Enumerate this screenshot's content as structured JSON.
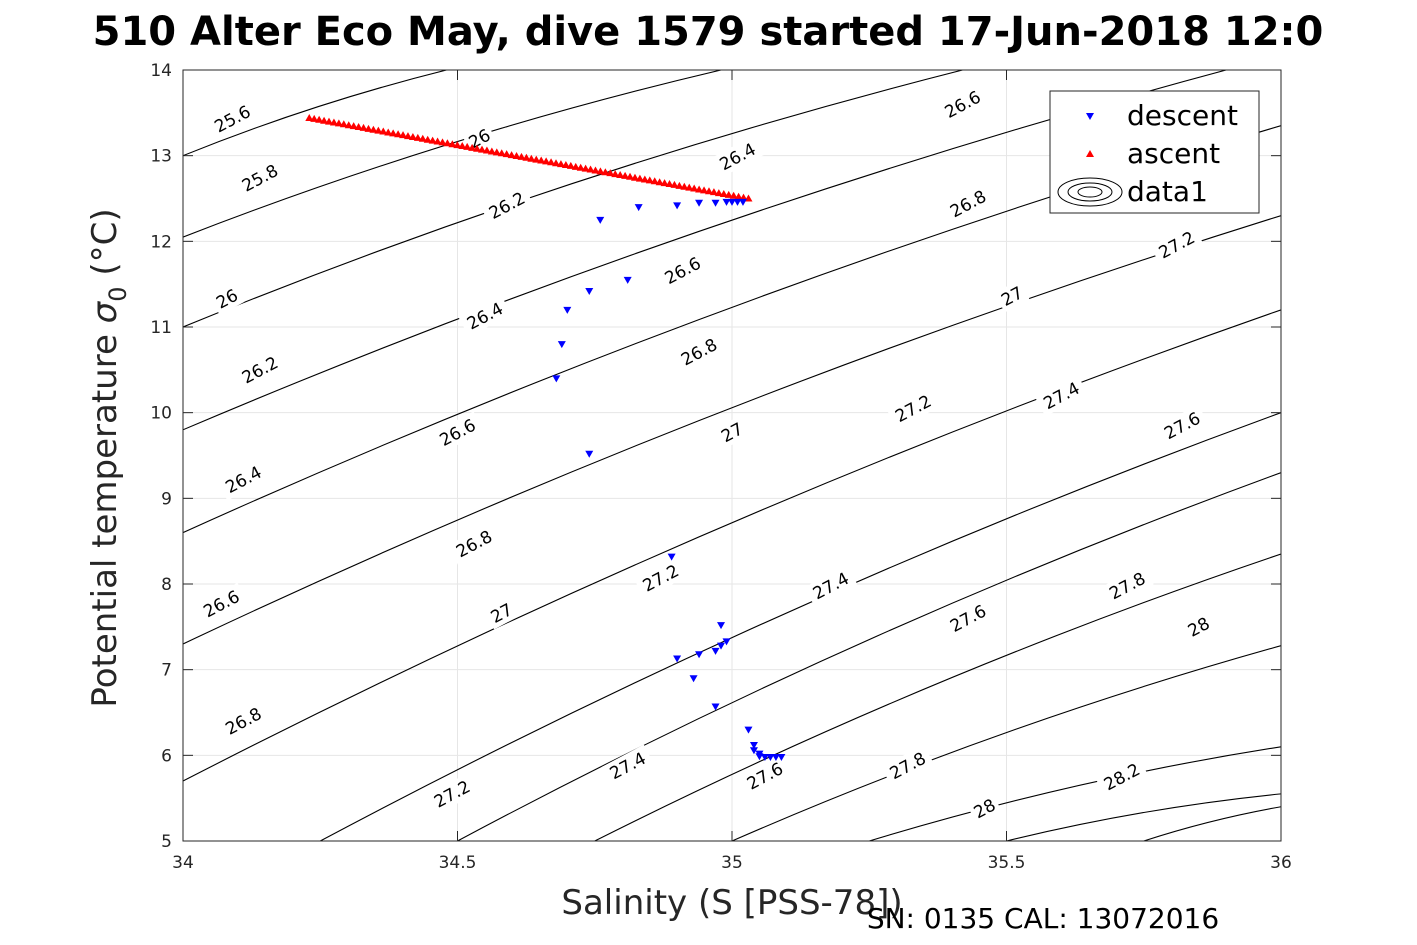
{
  "chart_data": {
    "type": "scatter",
    "title": "510 Alter Eco May, dive 1579 started 17-Jun-2018 12:0",
    "xlabel": "Salinity (S [PSS-78])",
    "ylabel_main": "Potential temperature ",
    "ylabel_symbol": "σ",
    "ylabel_sub": "0",
    "ylabel_unit": " (°C)",
    "footer": "SN: 0135  CAL: 13072016",
    "xlim": [
      34,
      36
    ],
    "ylim": [
      5,
      14
    ],
    "xticks": [
      34,
      34.5,
      35,
      35.5,
      36
    ],
    "xtick_labels": [
      "34",
      "34.5",
      "35",
      "35.5",
      "36"
    ],
    "yticks": [
      5,
      6,
      7,
      8,
      9,
      10,
      11,
      12,
      13,
      14
    ],
    "ytick_labels": [
      "5",
      "6",
      "7",
      "8",
      "9",
      "10",
      "11",
      "12",
      "13",
      "14"
    ],
    "grid": true,
    "legend_position": "top-right",
    "legend": [
      "descent",
      "ascent",
      "data1"
    ],
    "series": [
      {
        "name": "descent",
        "color": "#0000ff",
        "marker": "triangle-down",
        "points": [
          [
            34.76,
            12.25
          ],
          [
            34.83,
            12.4
          ],
          [
            34.9,
            12.42
          ],
          [
            34.94,
            12.45
          ],
          [
            34.97,
            12.45
          ],
          [
            34.99,
            12.46
          ],
          [
            35.0,
            12.46
          ],
          [
            35.01,
            12.46
          ],
          [
            35.02,
            12.46
          ],
          [
            34.74,
            11.42
          ],
          [
            34.81,
            11.55
          ],
          [
            34.7,
            11.2
          ],
          [
            34.69,
            10.8
          ],
          [
            34.68,
            10.4
          ],
          [
            34.74,
            9.52
          ],
          [
            34.89,
            8.32
          ],
          [
            34.9,
            7.13
          ],
          [
            34.94,
            7.18
          ],
          [
            34.97,
            7.22
          ],
          [
            34.98,
            7.28
          ],
          [
            34.99,
            7.33
          ],
          [
            34.98,
            7.52
          ],
          [
            34.93,
            6.9
          ],
          [
            34.97,
            6.57
          ],
          [
            35.03,
            6.3
          ],
          [
            35.04,
            6.12
          ],
          [
            35.04,
            6.06
          ],
          [
            35.05,
            6.02
          ],
          [
            35.05,
            5.99
          ],
          [
            35.06,
            5.98
          ],
          [
            35.07,
            5.98
          ],
          [
            35.08,
            5.98
          ],
          [
            35.09,
            5.98
          ]
        ]
      },
      {
        "name": "ascent",
        "color": "#ff0000",
        "marker": "triangle-up",
        "line_from": [
          34.23,
          13.44
        ],
        "line_to": [
          35.03,
          12.5
        ],
        "n_points": 90
      }
    ],
    "contours": {
      "name": "data1",
      "color": "#000000",
      "lines": [
        {
          "level": "25.6",
          "p0": [
            34.0,
            13.0
          ],
          "p1": [
            34.48,
            14.0
          ]
        },
        {
          "level": "25.8",
          "p0": [
            34.0,
            12.05
          ],
          "p1": [
            34.98,
            14.0
          ]
        },
        {
          "level": "26",
          "p0": [
            34.0,
            11.0
          ],
          "p1": [
            35.42,
            14.0
          ]
        },
        {
          "level": "26.2",
          "p0": [
            34.0,
            9.8
          ],
          "p1": [
            35.9,
            14.0
          ]
        },
        {
          "level": "26.4",
          "p0": [
            34.0,
            8.6
          ],
          "p1": [
            36.0,
            13.35
          ]
        },
        {
          "level": "26.6",
          "p0": [
            34.0,
            7.3
          ],
          "p1": [
            36.0,
            12.3
          ]
        },
        {
          "level": "26.8",
          "p0": [
            34.0,
            5.7
          ],
          "p1": [
            36.0,
            11.2
          ]
        },
        {
          "level": "27",
          "p0": [
            34.25,
            5.0
          ],
          "p1": [
            36.0,
            10.0
          ]
        },
        {
          "level": "27.2",
          "p0": [
            34.5,
            5.0
          ],
          "p1": [
            36.0,
            9.3
          ]
        },
        {
          "level": "27.4",
          "p0": [
            34.75,
            5.0
          ],
          "p1": [
            36.0,
            8.35
          ]
        },
        {
          "level": "27.6",
          "p0": [
            35.0,
            5.0
          ],
          "p1": [
            36.0,
            7.28
          ]
        },
        {
          "level": "27.8",
          "p0": [
            35.25,
            5.0
          ],
          "p1": [
            36.0,
            6.1
          ]
        },
        {
          "level": "28",
          "p0": [
            35.5,
            5.0
          ],
          "p1": [
            36.0,
            5.55
          ]
        },
        {
          "level": "28.2",
          "p0": [
            35.75,
            5.0
          ],
          "p1": [
            36.0,
            5.4
          ]
        }
      ],
      "labels": [
        {
          "text": "25.6",
          "at": [
            34.09,
            13.43
          ]
        },
        {
          "text": "25.8",
          "at": [
            34.14,
            12.74
          ]
        },
        {
          "text": "26",
          "at": [
            34.54,
            13.2
          ]
        },
        {
          "text": "26",
          "at": [
            34.08,
            11.33
          ]
        },
        {
          "text": "26.2",
          "at": [
            34.59,
            12.42
          ]
        },
        {
          "text": "26.2",
          "at": [
            34.14,
            10.5
          ]
        },
        {
          "text": "26.4",
          "at": [
            35.01,
            12.99
          ]
        },
        {
          "text": "26.4",
          "at": [
            34.55,
            11.13
          ]
        },
        {
          "text": "26.4",
          "at": [
            34.11,
            9.22
          ]
        },
        {
          "text": "26.6",
          "at": [
            35.42,
            13.6
          ]
        },
        {
          "text": "26.6",
          "at": [
            34.91,
            11.66
          ]
        },
        {
          "text": "26.6",
          "at": [
            34.5,
            9.77
          ]
        },
        {
          "text": "26.6",
          "at": [
            34.07,
            7.77
          ]
        },
        {
          "text": "26.8",
          "at": [
            35.43,
            12.44
          ]
        },
        {
          "text": "26.8",
          "at": [
            34.94,
            10.71
          ]
        },
        {
          "text": "26.8",
          "at": [
            34.53,
            8.47
          ]
        },
        {
          "text": "26.8",
          "at": [
            34.11,
            6.4
          ]
        },
        {
          "text": "27",
          "at": [
            35.51,
            11.36
          ]
        },
        {
          "text": "27",
          "at": [
            35.0,
            9.77
          ]
        },
        {
          "text": "27",
          "at": [
            34.58,
            7.66
          ]
        },
        {
          "text": "27.2",
          "at": [
            35.81,
            11.96
          ]
        },
        {
          "text": "27.2",
          "at": [
            35.33,
            10.05
          ]
        },
        {
          "text": "27.2",
          "at": [
            34.87,
            8.07
          ]
        },
        {
          "text": "27.2",
          "at": [
            34.49,
            5.55
          ]
        },
        {
          "text": "27.4",
          "at": [
            35.6,
            10.2
          ]
        },
        {
          "text": "27.4",
          "at": [
            35.18,
            7.98
          ]
        },
        {
          "text": "27.4",
          "at": [
            34.81,
            5.88
          ]
        },
        {
          "text": "27.6",
          "at": [
            35.82,
            9.85
          ]
        },
        {
          "text": "27.6",
          "at": [
            35.43,
            7.6
          ]
        },
        {
          "text": "27.6",
          "at": [
            35.06,
            5.76
          ]
        },
        {
          "text": "27.8",
          "at": [
            35.72,
            7.98
          ]
        },
        {
          "text": "27.8",
          "at": [
            35.32,
            5.88
          ]
        },
        {
          "text": "28",
          "at": [
            35.85,
            7.5
          ]
        },
        {
          "text": "28",
          "at": [
            35.46,
            5.38
          ]
        },
        {
          "text": "28.2",
          "at": [
            35.71,
            5.75
          ]
        }
      ]
    }
  }
}
